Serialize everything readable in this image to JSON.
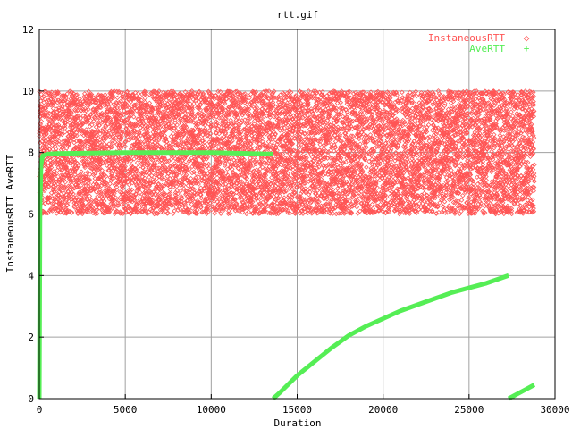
{
  "chart_data": {
    "type": "scatter",
    "title": "rtt.gif",
    "xlabel": "Duration",
    "ylabel": "InstaneousRTT AveRTT",
    "xlim": [
      0,
      30000
    ],
    "ylim": [
      0,
      12
    ],
    "xticks": [
      0,
      5000,
      10000,
      15000,
      20000,
      25000,
      30000
    ],
    "yticks": [
      0,
      2,
      4,
      6,
      8,
      10,
      12
    ],
    "grid": true,
    "legend_position": "top-right",
    "series": [
      {
        "name": "InstaneousRTT",
        "marker": "◇",
        "color": "#ff5555",
        "x_range": [
          0,
          28800
        ],
        "y_range": [
          6,
          10
        ],
        "distribution": "dense uniform band",
        "approx_point_count": 9000
      },
      {
        "name": "AveRTT",
        "marker": "+",
        "color": "#55ee55",
        "segments": [
          {
            "x": [
              0,
              40,
              100,
              200,
              500,
              1000,
              5000,
              10000,
              13600
            ],
            "y": [
              0,
              6.2,
              7.6,
              7.9,
              7.95,
              7.97,
              8.0,
              8.0,
              7.95
            ]
          },
          {
            "x": [
              13600,
              14000,
              15000,
              16000,
              17000,
              18000,
              19000,
              20000,
              21000,
              22000,
              23000,
              24000,
              25000,
              26000,
              27300
            ],
            "y": [
              0,
              0.2,
              0.75,
              1.2,
              1.65,
              2.05,
              2.35,
              2.6,
              2.85,
              3.05,
              3.25,
              3.45,
              3.6,
              3.75,
              4.0
            ]
          },
          {
            "x": [
              27300,
              27800,
              28300,
              28800
            ],
            "y": [
              0,
              0.15,
              0.3,
              0.45
            ]
          }
        ]
      }
    ]
  }
}
